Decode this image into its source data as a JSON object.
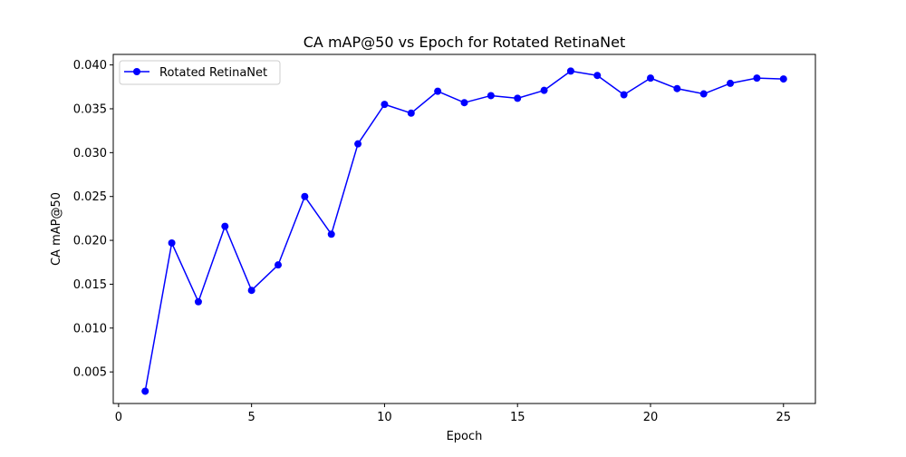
{
  "chart_data": {
    "type": "line",
    "title": "CA mAP@50 vs Epoch for Rotated RetinaNet",
    "xlabel": "Epoch",
    "ylabel": "CA mAP@50",
    "xlim": [
      -0.2,
      26.2
    ],
    "ylim": [
      0.0014,
      0.0412
    ],
    "xticks": [
      0,
      5,
      10,
      15,
      20,
      25
    ],
    "xtick_labels": [
      "0",
      "5",
      "10",
      "15",
      "20",
      "25"
    ],
    "yticks": [
      0.005,
      0.01,
      0.015,
      0.02,
      0.025,
      0.03,
      0.035,
      0.04
    ],
    "ytick_labels": [
      "0.005",
      "0.010",
      "0.015",
      "0.020",
      "0.025",
      "0.030",
      "0.035",
      "0.040"
    ],
    "grid": false,
    "legend_position": "top-left",
    "series": [
      {
        "name": "Rotated RetinaNet",
        "color": "#0000ff",
        "marker": "circle",
        "x": [
          1,
          2,
          3,
          4,
          5,
          6,
          7,
          8,
          9,
          10,
          11,
          12,
          13,
          14,
          15,
          16,
          17,
          18,
          19,
          20,
          21,
          22,
          23,
          24,
          25
        ],
        "y": [
          0.0028,
          0.0197,
          0.013,
          0.0216,
          0.0143,
          0.0172,
          0.025,
          0.0207,
          0.031,
          0.0355,
          0.0345,
          0.037,
          0.0357,
          0.0365,
          0.0362,
          0.0371,
          0.0393,
          0.0388,
          0.0366,
          0.0385,
          0.0373,
          0.0367,
          0.0379,
          0.0385,
          0.0384
        ]
      }
    ]
  }
}
